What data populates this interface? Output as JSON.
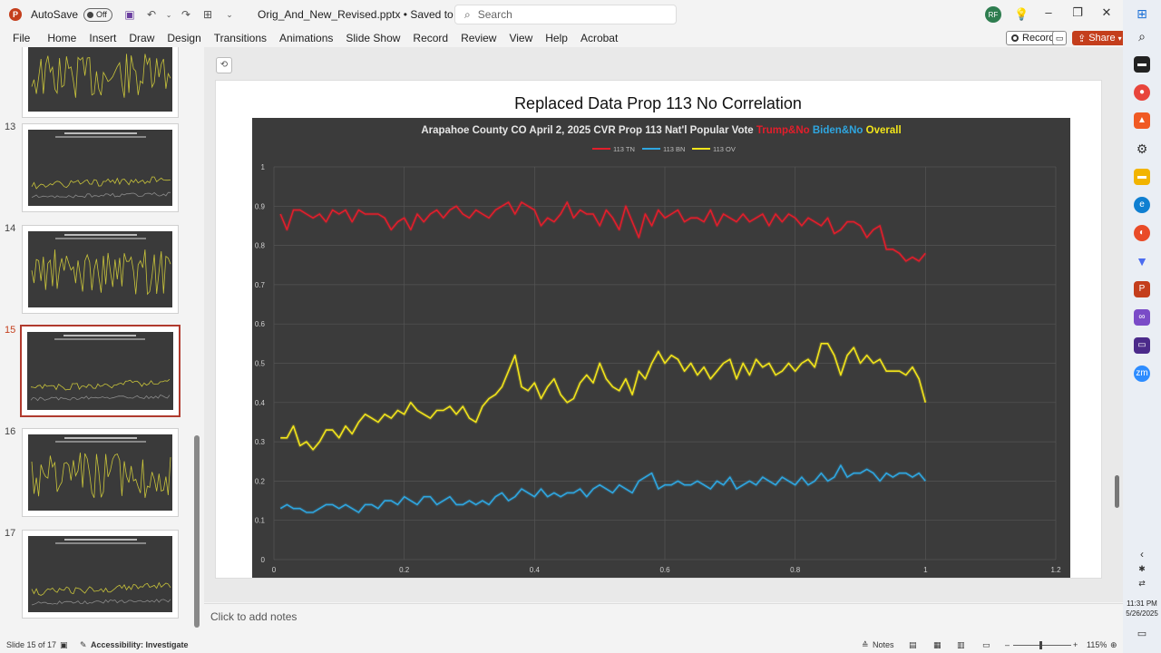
{
  "window": {
    "autosave_label": "AutoSave",
    "autosave_state": "Off",
    "doc_title": "Orig_And_New_Revised.pptx • Saved to this PC ⌄",
    "search_placeholder": "Search",
    "user_initials": "RF"
  },
  "ribbon": {
    "tabs": [
      "File",
      "Home",
      "Insert",
      "Draw",
      "Design",
      "Transitions",
      "Animations",
      "Slide Show",
      "Record",
      "Review",
      "View",
      "Help",
      "Acrobat"
    ],
    "record_label": "Record",
    "share_label": "Share"
  },
  "thumbnails": [
    {
      "number": "",
      "style": "volatile"
    },
    {
      "number": "13",
      "style": "flat"
    },
    {
      "number": "14",
      "style": "volatile"
    },
    {
      "number": "15",
      "style": "flat",
      "active": true
    },
    {
      "number": "16",
      "style": "volatile"
    },
    {
      "number": "17",
      "style": "flat"
    }
  ],
  "slide": {
    "title": "Replaced Data Prop 113 No Correlation"
  },
  "chart_data": {
    "type": "line",
    "title_parts": [
      {
        "text": "Arapahoe County CO April 2, 2025 CVR Prop 113 Nat'l Popular Vote ",
        "color": "#e6e6e6"
      },
      {
        "text": "Trump&No ",
        "color": "#e21e2b"
      },
      {
        "text": "Biden&No ",
        "color": "#2fa6e0"
      },
      {
        "text": "Overall",
        "color": "#f2e51b"
      }
    ],
    "xlim": [
      0,
      1.2
    ],
    "ylim": [
      0,
      1
    ],
    "x_ticks": [
      "0",
      "0.2",
      "0.4",
      "0.6",
      "0.8",
      "1",
      "1.2"
    ],
    "y_ticks": [
      "0",
      "0.1",
      "0.2",
      "0.3",
      "0.4",
      "0.5",
      "0.6",
      "0.7",
      "0.8",
      "0.9",
      "1"
    ],
    "grid": true,
    "legend_position": "top",
    "series": [
      {
        "name": "113 TN",
        "color": "#e21e2b",
        "x": [
          0.01,
          0.02,
          0.03,
          0.04,
          0.05,
          0.06,
          0.07,
          0.08,
          0.09,
          0.1,
          0.11,
          0.12,
          0.13,
          0.14,
          0.15,
          0.16,
          0.17,
          0.18,
          0.19,
          0.2,
          0.21,
          0.22,
          0.23,
          0.24,
          0.25,
          0.26,
          0.27,
          0.28,
          0.29,
          0.3,
          0.31,
          0.32,
          0.33,
          0.34,
          0.35,
          0.36,
          0.37,
          0.38,
          0.39,
          0.4,
          0.41,
          0.42,
          0.43,
          0.44,
          0.45,
          0.46,
          0.47,
          0.48,
          0.49,
          0.5,
          0.51,
          0.52,
          0.53,
          0.54,
          0.55,
          0.56,
          0.57,
          0.58,
          0.59,
          0.6,
          0.61,
          0.62,
          0.63,
          0.64,
          0.65,
          0.66,
          0.67,
          0.68,
          0.69,
          0.7,
          0.71,
          0.72,
          0.73,
          0.74,
          0.75,
          0.76,
          0.77,
          0.78,
          0.79,
          0.8,
          0.81,
          0.82,
          0.83,
          0.84,
          0.85,
          0.86,
          0.87,
          0.88,
          0.89,
          0.9,
          0.91,
          0.92,
          0.93,
          0.94,
          0.95,
          0.96,
          0.97,
          0.98,
          0.99,
          1.0
        ],
        "y": [
          0.88,
          0.84,
          0.89,
          0.89,
          0.88,
          0.87,
          0.88,
          0.86,
          0.89,
          0.88,
          0.89,
          0.86,
          0.89,
          0.88,
          0.88,
          0.88,
          0.87,
          0.84,
          0.86,
          0.87,
          0.84,
          0.88,
          0.86,
          0.88,
          0.89,
          0.87,
          0.89,
          0.9,
          0.88,
          0.87,
          0.89,
          0.88,
          0.87,
          0.89,
          0.9,
          0.91,
          0.88,
          0.91,
          0.9,
          0.89,
          0.85,
          0.87,
          0.86,
          0.88,
          0.91,
          0.87,
          0.89,
          0.88,
          0.88,
          0.85,
          0.89,
          0.87,
          0.84,
          0.9,
          0.86,
          0.82,
          0.88,
          0.85,
          0.89,
          0.87,
          0.88,
          0.89,
          0.86,
          0.87,
          0.87,
          0.86,
          0.89,
          0.85,
          0.88,
          0.87,
          0.86,
          0.88,
          0.86,
          0.87,
          0.88,
          0.85,
          0.88,
          0.86,
          0.88,
          0.87,
          0.85,
          0.87,
          0.86,
          0.85,
          0.87,
          0.83,
          0.84,
          0.86,
          0.86,
          0.85,
          0.82,
          0.84,
          0.85,
          0.79,
          0.79,
          0.78,
          0.76,
          0.77,
          0.76,
          0.78
        ]
      },
      {
        "name": "113 BN",
        "color": "#2fa6e0",
        "x": [
          0.01,
          0.02,
          0.03,
          0.04,
          0.05,
          0.06,
          0.07,
          0.08,
          0.09,
          0.1,
          0.11,
          0.12,
          0.13,
          0.14,
          0.15,
          0.16,
          0.17,
          0.18,
          0.19,
          0.2,
          0.21,
          0.22,
          0.23,
          0.24,
          0.25,
          0.26,
          0.27,
          0.28,
          0.29,
          0.3,
          0.31,
          0.32,
          0.33,
          0.34,
          0.35,
          0.36,
          0.37,
          0.38,
          0.39,
          0.4,
          0.41,
          0.42,
          0.43,
          0.44,
          0.45,
          0.46,
          0.47,
          0.48,
          0.49,
          0.5,
          0.51,
          0.52,
          0.53,
          0.54,
          0.55,
          0.56,
          0.57,
          0.58,
          0.59,
          0.6,
          0.61,
          0.62,
          0.63,
          0.64,
          0.65,
          0.66,
          0.67,
          0.68,
          0.69,
          0.7,
          0.71,
          0.72,
          0.73,
          0.74,
          0.75,
          0.76,
          0.77,
          0.78,
          0.79,
          0.8,
          0.81,
          0.82,
          0.83,
          0.84,
          0.85,
          0.86,
          0.87,
          0.88,
          0.89,
          0.9,
          0.91,
          0.92,
          0.93,
          0.94,
          0.95,
          0.96,
          0.97,
          0.98,
          0.99,
          1.0
        ],
        "y": [
          0.13,
          0.14,
          0.13,
          0.13,
          0.12,
          0.12,
          0.13,
          0.14,
          0.14,
          0.13,
          0.14,
          0.13,
          0.12,
          0.14,
          0.14,
          0.13,
          0.15,
          0.15,
          0.14,
          0.16,
          0.15,
          0.14,
          0.16,
          0.16,
          0.14,
          0.15,
          0.16,
          0.14,
          0.14,
          0.15,
          0.14,
          0.15,
          0.14,
          0.16,
          0.17,
          0.15,
          0.16,
          0.18,
          0.17,
          0.16,
          0.18,
          0.16,
          0.17,
          0.16,
          0.17,
          0.17,
          0.18,
          0.16,
          0.18,
          0.19,
          0.18,
          0.17,
          0.19,
          0.18,
          0.17,
          0.2,
          0.21,
          0.22,
          0.18,
          0.19,
          0.19,
          0.2,
          0.19,
          0.19,
          0.2,
          0.19,
          0.18,
          0.2,
          0.19,
          0.21,
          0.18,
          0.19,
          0.2,
          0.19,
          0.21,
          0.2,
          0.19,
          0.21,
          0.2,
          0.19,
          0.21,
          0.19,
          0.2,
          0.22,
          0.2,
          0.21,
          0.24,
          0.21,
          0.22,
          0.22,
          0.23,
          0.22,
          0.2,
          0.22,
          0.21,
          0.22,
          0.22,
          0.21,
          0.22,
          0.2
        ]
      },
      {
        "name": "113 OV",
        "color": "#f2e51b",
        "x": [
          0.01,
          0.02,
          0.03,
          0.04,
          0.05,
          0.06,
          0.07,
          0.08,
          0.09,
          0.1,
          0.11,
          0.12,
          0.13,
          0.14,
          0.15,
          0.16,
          0.17,
          0.18,
          0.19,
          0.2,
          0.21,
          0.22,
          0.23,
          0.24,
          0.25,
          0.26,
          0.27,
          0.28,
          0.29,
          0.3,
          0.31,
          0.32,
          0.33,
          0.34,
          0.35,
          0.36,
          0.37,
          0.38,
          0.39,
          0.4,
          0.41,
          0.42,
          0.43,
          0.44,
          0.45,
          0.46,
          0.47,
          0.48,
          0.49,
          0.5,
          0.51,
          0.52,
          0.53,
          0.54,
          0.55,
          0.56,
          0.57,
          0.58,
          0.59,
          0.6,
          0.61,
          0.62,
          0.63,
          0.64,
          0.65,
          0.66,
          0.67,
          0.68,
          0.69,
          0.7,
          0.71,
          0.72,
          0.73,
          0.74,
          0.75,
          0.76,
          0.77,
          0.78,
          0.79,
          0.8,
          0.81,
          0.82,
          0.83,
          0.84,
          0.85,
          0.86,
          0.87,
          0.88,
          0.89,
          0.9,
          0.91,
          0.92,
          0.93,
          0.94,
          0.95,
          0.96,
          0.97,
          0.98,
          0.99,
          1.0
        ],
        "y": [
          0.31,
          0.31,
          0.34,
          0.29,
          0.3,
          0.28,
          0.3,
          0.33,
          0.33,
          0.31,
          0.34,
          0.32,
          0.35,
          0.37,
          0.36,
          0.35,
          0.37,
          0.36,
          0.38,
          0.37,
          0.4,
          0.38,
          0.37,
          0.36,
          0.38,
          0.38,
          0.39,
          0.37,
          0.39,
          0.36,
          0.35,
          0.39,
          0.41,
          0.42,
          0.44,
          0.48,
          0.52,
          0.44,
          0.43,
          0.45,
          0.41,
          0.44,
          0.46,
          0.42,
          0.4,
          0.41,
          0.45,
          0.47,
          0.45,
          0.5,
          0.46,
          0.44,
          0.43,
          0.46,
          0.42,
          0.48,
          0.46,
          0.5,
          0.53,
          0.5,
          0.52,
          0.51,
          0.48,
          0.5,
          0.47,
          0.49,
          0.46,
          0.48,
          0.5,
          0.51,
          0.46,
          0.5,
          0.47,
          0.51,
          0.49,
          0.5,
          0.47,
          0.48,
          0.5,
          0.48,
          0.5,
          0.51,
          0.49,
          0.55,
          0.55,
          0.52,
          0.47,
          0.52,
          0.54,
          0.5,
          0.52,
          0.5,
          0.51,
          0.48,
          0.48,
          0.48,
          0.47,
          0.49,
          0.46,
          0.4
        ]
      }
    ]
  },
  "notes": {
    "placeholder": "Click to add notes"
  },
  "status": {
    "slide_counter": "Slide 15 of 17",
    "accessibility": "Accessibility: Investigate",
    "notes_label": "Notes",
    "zoom": "115%"
  },
  "clock": {
    "time": "11:31 PM",
    "date": "5/26/2025"
  }
}
